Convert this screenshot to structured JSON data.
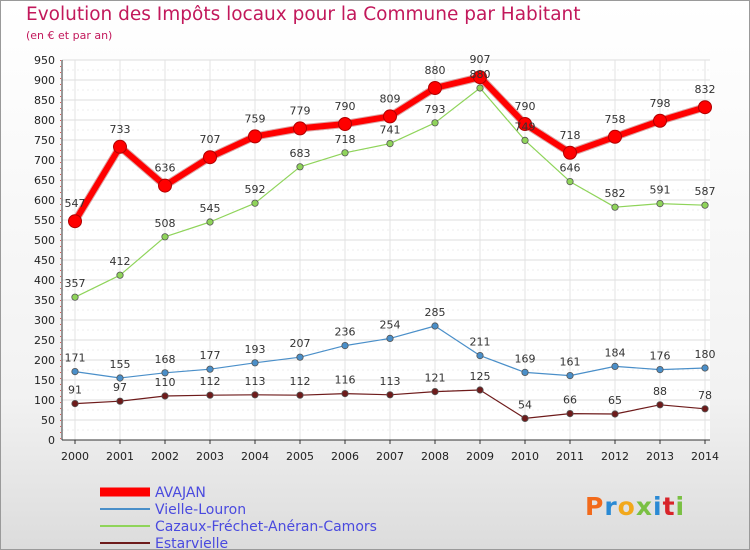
{
  "title": "Evolution des Impôts locaux pour la Commune par Habitant",
  "subtitle": "(en € et par an)",
  "logo": {
    "text": "Proxiti",
    "colors": [
      "#f26a1b",
      "#2b8ad4",
      "#f2a81b",
      "#7ac043",
      "#2b8ad4",
      "#d8242a",
      "#7ac043"
    ]
  },
  "chart_data": {
    "type": "line",
    "x": [
      "2000",
      "2001",
      "2002",
      "2003",
      "2004",
      "2005",
      "2006",
      "2007",
      "2008",
      "2009",
      "2010",
      "2011",
      "2012",
      "2013",
      "2014"
    ],
    "yticks": [
      0,
      50,
      100,
      150,
      200,
      250,
      300,
      350,
      400,
      450,
      500,
      550,
      600,
      650,
      700,
      750,
      800,
      850,
      900,
      950
    ],
    "ylim": [
      0,
      950
    ],
    "grid": true,
    "legend": "bottom-left",
    "series": [
      {
        "name": "AVAJAN",
        "color": "#ff0000",
        "values": [
          547,
          733,
          636,
          707,
          759,
          779,
          790,
          809,
          880,
          907,
          790,
          718,
          758,
          798,
          832
        ]
      },
      {
        "name": "Vielle-Louron",
        "color": "#4a8fc9",
        "values": [
          171,
          155,
          168,
          177,
          193,
          207,
          236,
          254,
          285,
          211,
          169,
          161,
          184,
          176,
          180
        ]
      },
      {
        "name": "Cazaux-Fréchet-Anéran-Camors",
        "color": "#8fd45a",
        "values": [
          357,
          412,
          508,
          545,
          592,
          683,
          718,
          741,
          793,
          880,
          749,
          646,
          582,
          591,
          587
        ]
      },
      {
        "name": "Estarvielle",
        "color": "#6e1b1b",
        "values": [
          91,
          97,
          110,
          112,
          113,
          112,
          116,
          113,
          121,
          125,
          54,
          66,
          65,
          88,
          78
        ]
      }
    ]
  }
}
